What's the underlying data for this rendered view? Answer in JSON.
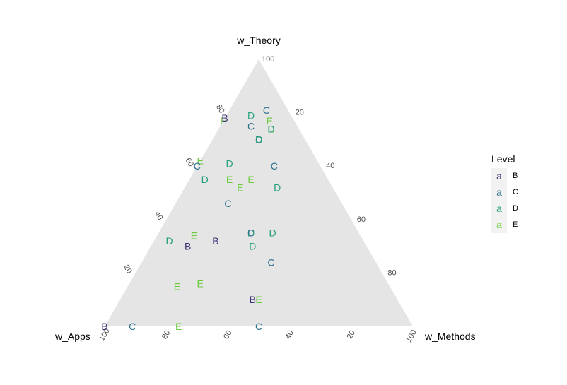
{
  "chart_data": {
    "type": "ternary-scatter",
    "axes": {
      "top": "w_Theory",
      "left": "w_Apps",
      "right": "w_Methods"
    },
    "ticks": [
      20,
      40,
      60,
      80,
      100
    ],
    "legend": {
      "title": "Level",
      "key_glyph": "a",
      "placement": "right",
      "entries": [
        {
          "label": "B",
          "color": "#3b2f73"
        },
        {
          "label": "C",
          "color": "#2a6f8e"
        },
        {
          "label": "D",
          "color": "#23a07a"
        },
        {
          "label": "E",
          "color": "#6ccb3c"
        }
      ]
    },
    "colors": {
      "panel": "#e5e5e5",
      "tick_text": "#4d4d4d"
    },
    "points": [
      {
        "level": "E",
        "apps": 0.23,
        "methods": 0.0,
        "theory": 0.77
      },
      {
        "level": "C",
        "apps": 0.07,
        "methods": 0.12,
        "theory": 0.81
      },
      {
        "level": "D",
        "apps": 0.13,
        "methods": 0.08,
        "theory": 0.79
      },
      {
        "level": "E",
        "apps": 0.08,
        "methods": 0.15,
        "theory": 0.77
      },
      {
        "level": "E",
        "apps": 0.09,
        "methods": 0.17,
        "theory": 0.74
      },
      {
        "level": "D",
        "apps": 0.09,
        "methods": 0.17,
        "theory": 0.74
      },
      {
        "level": "B",
        "apps": 0.22,
        "methods": 0.0,
        "theory": 0.78
      },
      {
        "level": "C",
        "apps": 0.15,
        "methods": 0.1,
        "theory": 0.75
      },
      {
        "level": "C",
        "apps": 0.15,
        "methods": 0.15,
        "theory": 0.7
      },
      {
        "level": "D",
        "apps": 0.15,
        "methods": 0.15,
        "theory": 0.7
      },
      {
        "level": "E",
        "apps": 0.38,
        "methods": 0.0,
        "theory": 0.62
      },
      {
        "level": "C",
        "apps": 0.4,
        "methods": 0.0,
        "theory": 0.6
      },
      {
        "level": "D",
        "apps": 0.29,
        "methods": 0.1,
        "theory": 0.61
      },
      {
        "level": "C",
        "apps": 0.15,
        "methods": 0.25,
        "theory": 0.6
      },
      {
        "level": "D",
        "apps": 0.4,
        "methods": 0.05,
        "theory": 0.55
      },
      {
        "level": "E",
        "apps": 0.32,
        "methods": 0.13,
        "theory": 0.55
      },
      {
        "level": "E",
        "apps": 0.25,
        "methods": 0.2,
        "theory": 0.55
      },
      {
        "level": "E",
        "apps": 0.3,
        "methods": 0.18,
        "theory": 0.52
      },
      {
        "level": "D",
        "apps": 0.18,
        "methods": 0.3,
        "theory": 0.52
      },
      {
        "level": "C",
        "apps": 0.37,
        "methods": 0.17,
        "theory": 0.46
      },
      {
        "level": "E",
        "apps": 0.54,
        "methods": 0.12,
        "theory": 0.34
      },
      {
        "level": "D",
        "apps": 0.35,
        "methods": 0.3,
        "theory": 0.35
      },
      {
        "level": "C",
        "apps": 0.35,
        "methods": 0.3,
        "theory": 0.35
      },
      {
        "level": "D",
        "apps": 0.28,
        "methods": 0.37,
        "theory": 0.35
      },
      {
        "level": "D",
        "apps": 0.63,
        "methods": 0.05,
        "theory": 0.32
      },
      {
        "level": "B",
        "apps": 0.48,
        "methods": 0.2,
        "theory": 0.32
      },
      {
        "level": "D",
        "apps": 0.37,
        "methods": 0.33,
        "theory": 0.3
      },
      {
        "level": "B",
        "apps": 0.58,
        "methods": 0.12,
        "theory": 0.3
      },
      {
        "level": "C",
        "apps": 0.34,
        "methods": 0.42,
        "theory": 0.24
      },
      {
        "level": "E",
        "apps": 0.61,
        "methods": 0.23,
        "theory": 0.16
      },
      {
        "level": "E",
        "apps": 0.69,
        "methods": 0.16,
        "theory": 0.15
      },
      {
        "level": "B",
        "apps": 0.47,
        "methods": 0.43,
        "theory": 0.1
      },
      {
        "level": "E",
        "apps": 0.45,
        "methods": 0.45,
        "theory": 0.1
      },
      {
        "level": "B",
        "apps": 1.0,
        "methods": 0.0,
        "theory": 0.0
      },
      {
        "level": "C",
        "apps": 0.91,
        "methods": 0.09,
        "theory": 0.0
      },
      {
        "level": "E",
        "apps": 0.76,
        "methods": 0.24,
        "theory": 0.0
      },
      {
        "level": "C",
        "apps": 0.5,
        "methods": 0.5,
        "theory": 0.0
      }
    ]
  }
}
